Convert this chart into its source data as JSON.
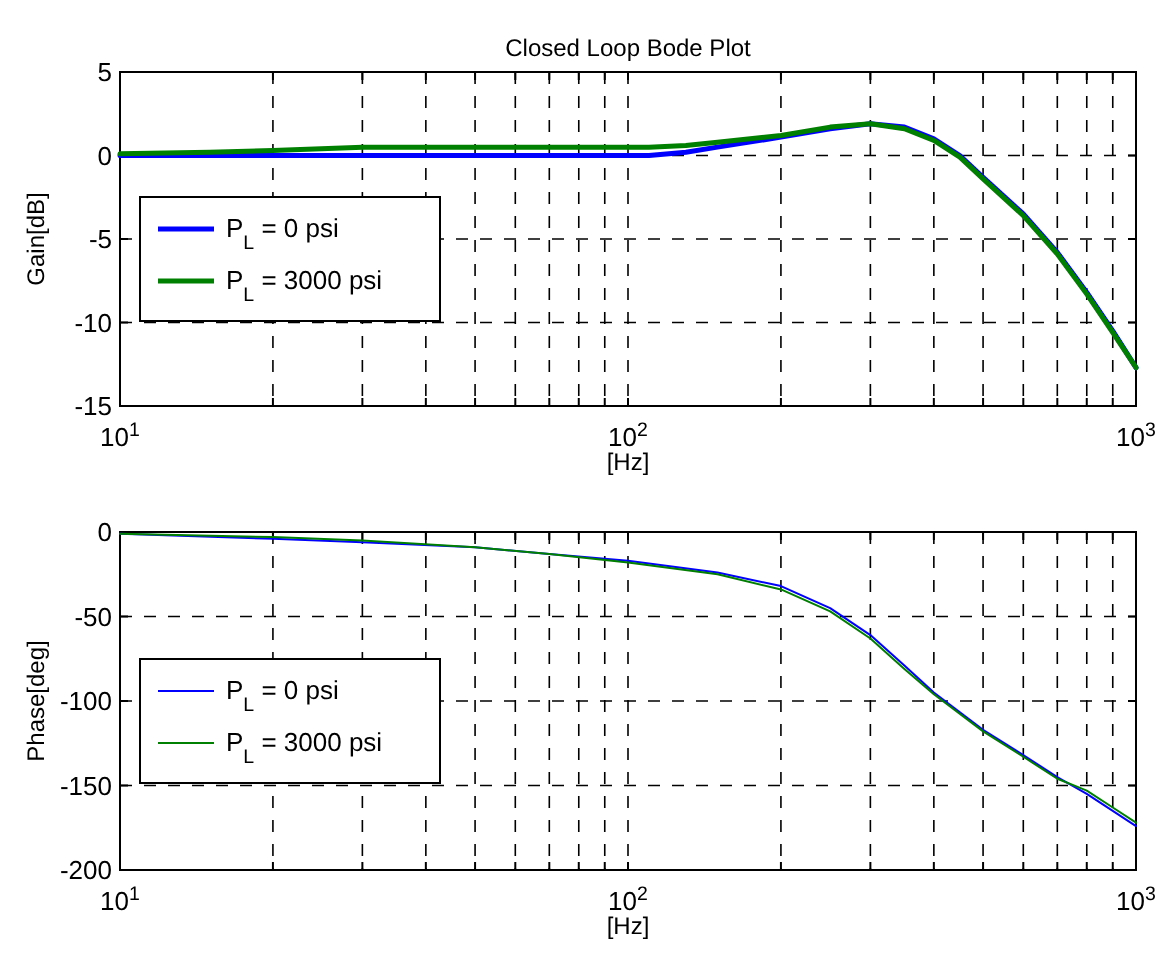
{
  "chart_data": [
    {
      "type": "line",
      "title": "Closed Loop Bode Plot",
      "xlabel": "[Hz]",
      "ylabel": "Gain[dB]",
      "log": "x",
      "grid": true,
      "legend": "left",
      "line_style": "solid",
      "marker": "none",
      "xlim": [
        10,
        1000
      ],
      "xticks": [
        {
          "value": 10,
          "label": "10$^{1}$"
        },
        {
          "value": 20,
          "label": null
        },
        {
          "value": 30,
          "label": null
        },
        {
          "value": 40,
          "label": null
        },
        {
          "value": 50,
          "label": null
        },
        {
          "value": 60,
          "label": null
        },
        {
          "value": 70,
          "label": null
        },
        {
          "value": 80,
          "label": null
        },
        {
          "value": 90,
          "label": null
        },
        {
          "value": 100,
          "label": "10$^{2}$"
        },
        {
          "value": 200,
          "label": null
        },
        {
          "value": 300,
          "label": null
        },
        {
          "value": 400,
          "label": null
        },
        {
          "value": 500,
          "label": null
        },
        {
          "value": 600,
          "label": null
        },
        {
          "value": 700,
          "label": null
        },
        {
          "value": 800,
          "label": null
        },
        {
          "value": 900,
          "label": null
        },
        {
          "value": 1000,
          "label": "10$^{3}$"
        }
      ],
      "ylim": [
        -15,
        5
      ],
      "yticks": [
        -15,
        -10,
        -5,
        0,
        5
      ],
      "x": [
        10,
        15,
        20,
        30,
        50,
        80,
        110,
        130,
        150,
        200,
        250,
        300,
        350,
        400,
        450,
        500,
        600,
        700,
        800,
        900,
        1000
      ],
      "series": [
        {
          "name": "P$_{L}$ = 0 psi",
          "color": "#0000ff",
          "values": [
            0,
            0,
            0,
            0,
            0,
            0,
            0,
            0.2,
            0.5,
            1.1,
            1.6,
            1.9,
            1.7,
            1.0,
            0,
            -1.3,
            -3.5,
            -5.8,
            -8.2,
            -10.5,
            -12.7
          ]
        },
        {
          "name": "P$_{L}$ = 3000 psi",
          "color": "#008000",
          "values": [
            0.1,
            0.2,
            0.3,
            0.5,
            0.5,
            0.5,
            0.5,
            0.6,
            0.8,
            1.2,
            1.7,
            1.9,
            1.6,
            0.9,
            -0.1,
            -1.4,
            -3.6,
            -5.9,
            -8.3,
            -10.6,
            -12.7
          ]
        }
      ]
    },
    {
      "type": "line",
      "xlabel": "[Hz]",
      "ylabel": "Phase[deg]",
      "log": "x",
      "grid": true,
      "legend": "left",
      "line_style": "solid",
      "marker": "none",
      "xlim": [
        10,
        1000
      ],
      "xticks": [
        {
          "value": 10,
          "label": "10$^{1}$"
        },
        {
          "value": 20,
          "label": null
        },
        {
          "value": 30,
          "label": null
        },
        {
          "value": 40,
          "label": null
        },
        {
          "value": 50,
          "label": null
        },
        {
          "value": 60,
          "label": null
        },
        {
          "value": 70,
          "label": null
        },
        {
          "value": 80,
          "label": null
        },
        {
          "value": 90,
          "label": null
        },
        {
          "value": 100,
          "label": "10$^{2}$"
        },
        {
          "value": 200,
          "label": null
        },
        {
          "value": 300,
          "label": null
        },
        {
          "value": 400,
          "label": null
        },
        {
          "value": 500,
          "label": null
        },
        {
          "value": 600,
          "label": null
        },
        {
          "value": 700,
          "label": null
        },
        {
          "value": 800,
          "label": null
        },
        {
          "value": 900,
          "label": null
        },
        {
          "value": 1000,
          "label": "10$^{3}$"
        }
      ],
      "ylim": [
        -200,
        0
      ],
      "yticks": [
        -200,
        -150,
        -100,
        -50,
        0
      ],
      "x": [
        10,
        20,
        30,
        50,
        70,
        100,
        150,
        200,
        250,
        300,
        350,
        400,
        500,
        600,
        700,
        800,
        900,
        1000
      ],
      "series": [
        {
          "name": "P$_{L}$ = 0 psi",
          "color": "#0000ff",
          "values": [
            -1,
            -4,
            -6,
            -9,
            -13,
            -17,
            -24,
            -32,
            -45,
            -61,
            -79,
            -95,
            -117,
            -132,
            -145,
            -155,
            -165,
            -174
          ]
        },
        {
          "name": "P$_{L}$ = 3000 psi",
          "color": "#008000",
          "values": [
            -1,
            -3,
            -5,
            -9,
            -13,
            -18,
            -25,
            -34,
            -47,
            -63,
            -81,
            -96,
            -118,
            -133,
            -146,
            -153,
            -163,
            -172
          ]
        }
      ]
    }
  ]
}
